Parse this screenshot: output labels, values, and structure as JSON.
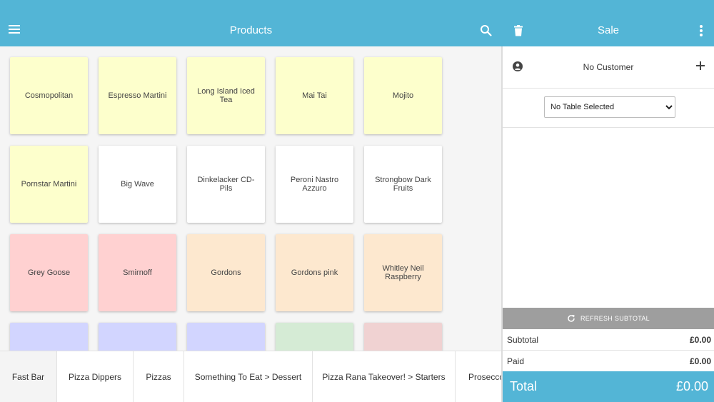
{
  "header": {
    "title": "Products",
    "icons": {
      "menu": "hamburger-menu-icon",
      "search": "search-icon"
    },
    "color": "#53b5d6"
  },
  "sale_header": {
    "title": "Sale",
    "icons": {
      "delete": "trash-icon",
      "more": "more-vertical-icon"
    }
  },
  "products": [
    {
      "name": "Cosmopolitan",
      "color": "#fdffcc"
    },
    {
      "name": "Espresso Martini",
      "color": "#fdffcc"
    },
    {
      "name": "Long Island Iced Tea",
      "color": "#fdffcc"
    },
    {
      "name": "Mai Tai",
      "color": "#fdffcc"
    },
    {
      "name": "Mojito",
      "color": "#fdffcc"
    },
    {
      "name": "Pornstar Martini",
      "color": "#fdffcc"
    },
    {
      "name": "Big Wave",
      "color": "#ffffff"
    },
    {
      "name": "Dinkelacker CD-Pils",
      "color": "#ffffff"
    },
    {
      "name": "Peroni Nastro Azzuro",
      "color": "#ffffff"
    },
    {
      "name": "Strongbow Dark Fruits",
      "color": "#ffffff"
    },
    {
      "name": "Grey Goose",
      "color": "#ffd1d1"
    },
    {
      "name": "Smirnoff",
      "color": "#ffd1d1"
    },
    {
      "name": "Gordons",
      "color": "#fde8cf"
    },
    {
      "name": "Gordons pink",
      "color": "#fde8cf"
    },
    {
      "name": "Whitley Neil Raspberry",
      "color": "#fde8cf"
    },
    {
      "name": "",
      "color": "#d2d5ff"
    },
    {
      "name": "",
      "color": "#d2d5ff"
    },
    {
      "name": "",
      "color": "#d2d5ff"
    },
    {
      "name": "",
      "color": "#d5ebd5"
    },
    {
      "name": "",
      "color": "#f0d2d2"
    }
  ],
  "categories": [
    {
      "label": "Fast Bar",
      "active": true
    },
    {
      "label": "Pizza Dippers",
      "active": false
    },
    {
      "label": "Pizzas",
      "active": false
    },
    {
      "label": "Something To Eat > Dessert",
      "active": false
    },
    {
      "label": "Pizza Rana Takeover! > Starters",
      "active": false
    },
    {
      "label": "Prosecco",
      "active": false
    }
  ],
  "customer": {
    "label": "No Customer",
    "icons": {
      "account": "account-circle-icon",
      "add": "plus-icon"
    }
  },
  "table": {
    "selected": "No Table Selected",
    "options": [
      "No Table Selected"
    ]
  },
  "refresh": {
    "label": "REFRESH SUBTOTAL",
    "icon": "refresh-icon"
  },
  "summary": {
    "subtotal_label": "Subtotal",
    "subtotal_value": "£0.00",
    "paid_label": "Paid",
    "paid_value": "£0.00",
    "total_label": "Total",
    "total_value": "£0.00"
  }
}
